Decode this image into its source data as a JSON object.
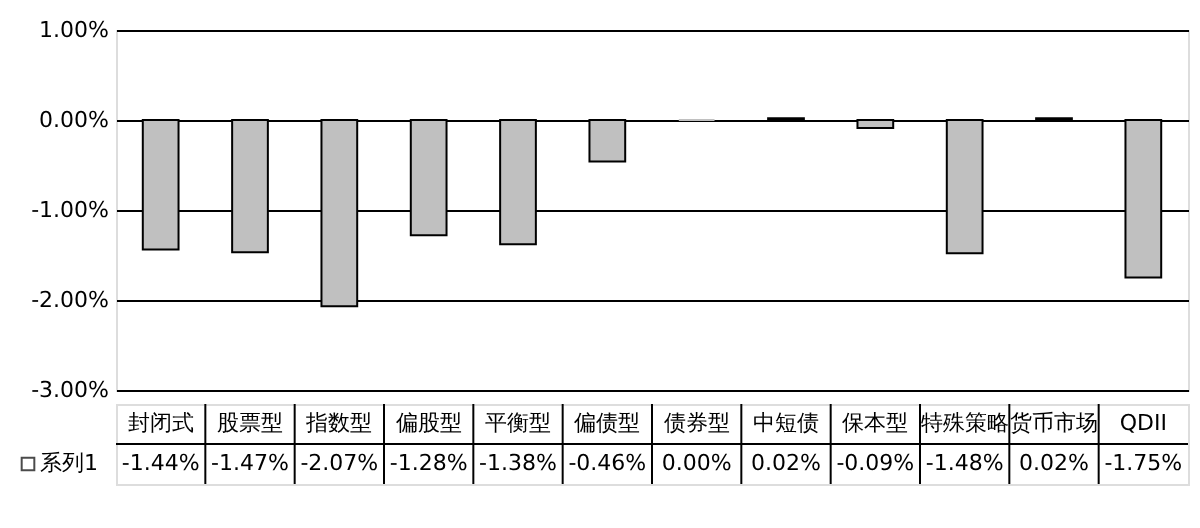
{
  "chart_data": {
    "type": "bar",
    "categories": [
      "封闭式",
      "股票型",
      "指数型",
      "偏股型",
      "平衡型",
      "偏债型",
      "债券型",
      "中短债",
      "保本型",
      "特殊策略",
      "货币市场",
      "QDII"
    ],
    "series": [
      {
        "name": "系列1",
        "color": "#c0c0c0",
        "values": [
          -1.44,
          -1.47,
          -2.07,
          -1.28,
          -1.38,
          -0.46,
          0.0,
          0.02,
          -0.09,
          -1.48,
          0.02,
          -1.75
        ],
        "value_labels": [
          "-1.44%",
          "-1.47%",
          "-2.07%",
          "-1.28%",
          "-1.38%",
          "-0.46%",
          "0.00%",
          "0.02%",
          "-0.09%",
          "-1.48%",
          "0.02%",
          "-1.75%"
        ]
      }
    ],
    "ylim": [
      -3,
      1
    ],
    "yticks": [
      {
        "value": -3,
        "label": "-3.00%"
      },
      {
        "value": -2,
        "label": "-2.00%"
      },
      {
        "value": -1,
        "label": "-1.00%"
      },
      {
        "value": 0,
        "label": "0.00%"
      },
      {
        "value": 1,
        "label": "1.00%"
      }
    ],
    "grid": "y",
    "legend": "bottom"
  }
}
